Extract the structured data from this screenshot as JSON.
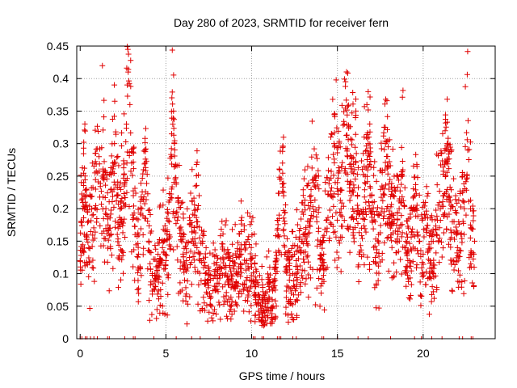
{
  "chart_data": {
    "type": "scatter",
    "title": "Day 280 of 2023, SRMTID for receiver fern",
    "xlabel": "GPS time / hours",
    "ylabel": "SRMTID / TECUs",
    "xlim": [
      -0.2,
      24.2
    ],
    "ylim": [
      0,
      0.45
    ],
    "xticks": [
      0,
      5,
      10,
      15,
      20
    ],
    "xtick_labels": [
      "0",
      "5",
      "10",
      "15",
      "20"
    ],
    "yticks": [
      0,
      0.05,
      0.1,
      0.15,
      0.2,
      0.25,
      0.3,
      0.35,
      0.4,
      0.45
    ],
    "ytick_labels": [
      "0",
      "0.05",
      "0.1",
      "0.15",
      "0.2",
      "0.25",
      "0.3",
      "0.35",
      "0.4",
      "0.45"
    ],
    "grid": true,
    "marker": "+",
    "color": "#e00000",
    "series": [
      {
        "name": "SRMTID",
        "x": [
          0.0,
          0.1,
          0.2,
          0.3,
          0.4,
          0.5,
          0.7,
          0.9,
          1.1,
          1.3,
          1.5,
          1.7,
          1.9,
          2.0,
          2.2,
          2.4,
          2.6,
          2.7,
          2.8,
          2.9,
          3.0,
          3.1,
          3.2,
          3.4,
          3.6,
          3.8,
          4.0,
          4.2,
          4.4,
          4.6,
          4.8,
          5.0,
          5.2,
          5.4,
          5.5,
          5.6,
          5.8,
          6.0,
          6.2,
          6.5,
          6.8,
          7.0,
          7.3,
          7.6,
          7.9,
          8.2,
          8.5,
          8.8,
          9.1,
          9.4,
          9.7,
          10.0,
          10.2,
          10.4,
          10.6,
          10.8,
          11.0,
          11.2,
          11.4,
          11.6,
          11.8,
          12.0,
          12.2,
          12.4,
          12.6,
          12.8,
          13.0,
          13.2,
          13.4,
          13.6,
          13.8,
          14.0,
          14.2,
          14.4,
          14.6,
          14.8,
          15.0,
          15.2,
          15.4,
          15.6,
          15.8,
          16.0,
          16.2,
          16.4,
          16.6,
          16.8,
          17.0,
          17.2,
          17.4,
          17.6,
          17.8,
          18.0,
          18.2,
          18.4,
          18.6,
          18.8,
          19.0,
          19.2,
          19.4,
          19.6,
          19.8,
          20.0,
          20.2,
          20.4,
          20.6,
          20.8,
          21.0,
          21.2,
          21.4,
          21.6,
          21.8,
          22.0,
          22.2,
          22.4,
          22.6,
          22.8,
          23.0
        ],
        "y": [
          0.12,
          0.18,
          0.24,
          0.21,
          0.16,
          0.14,
          0.19,
          0.23,
          0.28,
          0.25,
          0.2,
          0.17,
          0.27,
          0.3,
          0.22,
          0.18,
          0.24,
          0.33,
          0.41,
          0.36,
          0.27,
          0.22,
          0.16,
          0.13,
          0.2,
          0.27,
          0.15,
          0.1,
          0.08,
          0.11,
          0.14,
          0.12,
          0.18,
          0.33,
          0.3,
          0.24,
          0.17,
          0.13,
          0.12,
          0.15,
          0.18,
          0.12,
          0.1,
          0.09,
          0.08,
          0.1,
          0.11,
          0.09,
          0.1,
          0.13,
          0.12,
          0.11,
          0.08,
          0.06,
          0.04,
          0.07,
          0.08,
          0.06,
          0.1,
          0.19,
          0.27,
          0.11,
          0.09,
          0.1,
          0.12,
          0.14,
          0.16,
          0.15,
          0.2,
          0.24,
          0.18,
          0.15,
          0.13,
          0.17,
          0.22,
          0.3,
          0.24,
          0.19,
          0.33,
          0.28,
          0.22,
          0.26,
          0.2,
          0.17,
          0.24,
          0.3,
          0.22,
          0.18,
          0.16,
          0.2,
          0.3,
          0.23,
          0.18,
          0.15,
          0.2,
          0.25,
          0.14,
          0.12,
          0.16,
          0.2,
          0.15,
          0.13,
          0.17,
          0.12,
          0.1,
          0.16,
          0.2,
          0.22,
          0.3,
          0.2,
          0.18,
          0.14,
          0.16,
          0.2,
          0.29,
          0.17,
          0.15
        ]
      }
    ],
    "rug_x": [
      0.0,
      0.1,
      0.3,
      0.4,
      0.6,
      0.8,
      1.0,
      1.6,
      1.7,
      2.6,
      3.1,
      3.2,
      4.3,
      5.6,
      6.5,
      7.0,
      8.1,
      10.1,
      10.2,
      10.6,
      10.7,
      11.5,
      11.6,
      11.7,
      12.4,
      12.6,
      14.1,
      14.2,
      15.0,
      16.2,
      16.8,
      18.1,
      19.5,
      19.9,
      20.5,
      21.1,
      22.1,
      22.3,
      22.8,
      22.9
    ]
  }
}
